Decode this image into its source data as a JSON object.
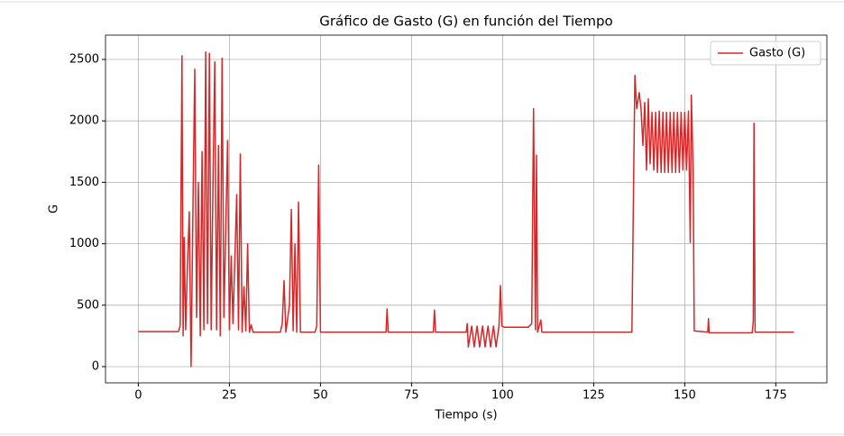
{
  "chart_data": {
    "type": "line",
    "title": "Gráfico de Gasto (G) en función del Tiempo",
    "xlabel": "Tiempo (s)",
    "ylabel": "G",
    "grid": true,
    "legend": "upper right",
    "xlim": [
      -9,
      189
    ],
    "ylim": [
      -132,
      2698
    ],
    "xticks": [
      0,
      25,
      50,
      75,
      100,
      125,
      150,
      175
    ],
    "yticks": [
      0,
      500,
      1000,
      1500,
      2000,
      2500
    ],
    "x": [
      0,
      11,
      11.5,
      12,
      12.3,
      12.6,
      13,
      13.5,
      14,
      14.5,
      15,
      15.5,
      16,
      16.5,
      17,
      17.5,
      18,
      18.5,
      19,
      19.5,
      20,
      20.5,
      21,
      21.5,
      22,
      22.5,
      23,
      23.5,
      24,
      24.5,
      25,
      25.5,
      26,
      27,
      27.5,
      28,
      28.5,
      29,
      29.5,
      30,
      30.5,
      31,
      31.5,
      39,
      39.5,
      40,
      40.5,
      41.5,
      42,
      42.5,
      43,
      43.5,
      44,
      44.5,
      48.5,
      49,
      49.5,
      50,
      68,
      68.3,
      68.6,
      81,
      81.3,
      81.6,
      90,
      90.3,
      90.6,
      91.5,
      92.2,
      93,
      93.7,
      94.5,
      95.2,
      96,
      96.7,
      97.5,
      98.2,
      99,
      99.4,
      99.8,
      100.5,
      107,
      108,
      108.5,
      109,
      109.3,
      109.6,
      110.5,
      110.8,
      135.5,
      136,
      136.3,
      136.8,
      137.5,
      138,
      138.5,
      139,
      139.5,
      140,
      140.5,
      141,
      141.5,
      142,
      142.5,
      143,
      143.5,
      144,
      144.5,
      145,
      145.5,
      146,
      146.5,
      147,
      147.5,
      148,
      148.5,
      149,
      149.5,
      150,
      150.5,
      151,
      151.5,
      151.8,
      152.3,
      152.6,
      156.3,
      156.5,
      156.7,
      168.5,
      168.8,
      169,
      169.3,
      180
    ],
    "series": [
      {
        "name": "Gasto (G)",
        "color": "#d62728",
        "values": [
          285,
          285,
          330,
          2530,
          250,
          1050,
          300,
          820,
          1260,
          0,
          1300,
          2420,
          400,
          1500,
          250,
          1750,
          300,
          2560,
          350,
          2550,
          300,
          1500,
          2480,
          300,
          1800,
          250,
          2510,
          400,
          1100,
          1840,
          300,
          900,
          350,
          1400,
          300,
          1730,
          280,
          650,
          290,
          1000,
          280,
          340,
          280,
          280,
          350,
          700,
          280,
          500,
          1280,
          290,
          1000,
          280,
          1340,
          280,
          280,
          330,
          1640,
          280,
          280,
          470,
          280,
          280,
          460,
          280,
          280,
          350,
          160,
          330,
          160,
          330,
          160,
          330,
          160,
          330,
          160,
          330,
          160,
          330,
          660,
          330,
          320,
          320,
          350,
          2100,
          300,
          1720,
          280,
          380,
          280,
          280,
          1640,
          2370,
          2100,
          2230,
          2100,
          1800,
          2150,
          1600,
          2180,
          1650,
          2070,
          1600,
          2070,
          1580,
          2080,
          1580,
          2070,
          1580,
          2070,
          1580,
          2070,
          1580,
          2070,
          1580,
          2070,
          1580,
          2070,
          1600,
          2070,
          1600,
          2080,
          1010,
          2210,
          1600,
          290,
          280,
          390,
          275,
          275,
          370,
          1980,
          280,
          280
        ]
      }
    ]
  }
}
